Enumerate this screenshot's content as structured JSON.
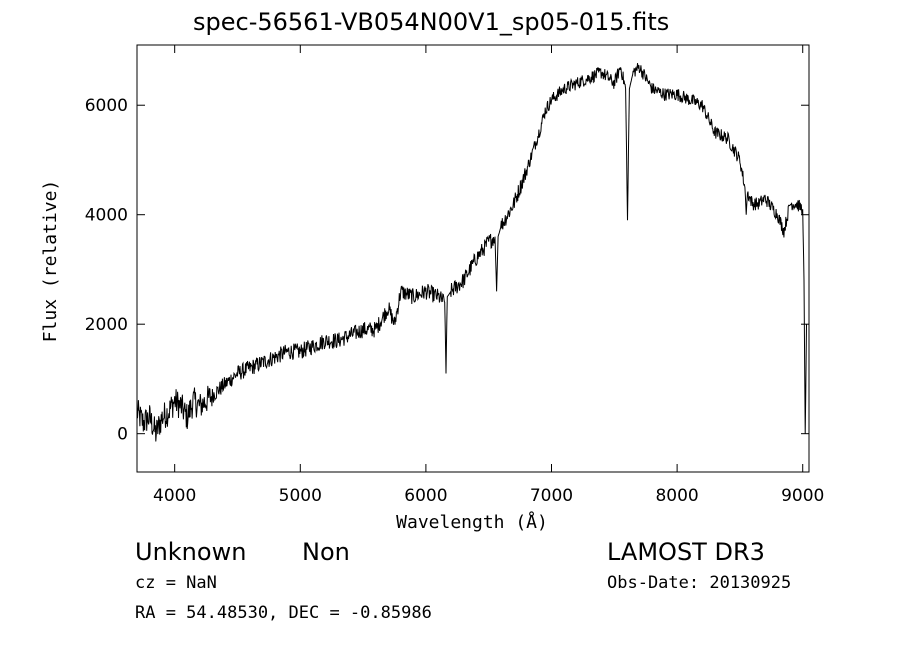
{
  "chart_data": {
    "type": "line",
    "title": "spec-56561-VB054N00V1_sp05-015.fits",
    "xlabel": "Wavelength (Å)",
    "ylabel": "Flux (relative)",
    "xlim": [
      3700,
      9050
    ],
    "ylim": [
      -700,
      7100
    ],
    "xticks": [
      4000,
      5000,
      6000,
      7000,
      8000,
      9000
    ],
    "yticks": [
      0,
      2000,
      4000,
      6000
    ],
    "grid": false,
    "series": [
      {
        "name": "flux",
        "x": [
          3700,
          3750,
          3800,
          3850,
          3900,
          3950,
          4000,
          4050,
          4100,
          4150,
          4200,
          4300,
          4400,
          4500,
          4600,
          4700,
          4800,
          4900,
          5000,
          5100,
          5200,
          5300,
          5400,
          5500,
          5600,
          5700,
          5750,
          5800,
          5900,
          6000,
          6100,
          6150,
          6160,
          6170,
          6200,
          6300,
          6400,
          6500,
          6550,
          6563,
          6575,
          6600,
          6700,
          6800,
          6900,
          6950,
          7000,
          7100,
          7200,
          7300,
          7400,
          7500,
          7550,
          7590,
          7605,
          7620,
          7650,
          7700,
          7800,
          7900,
          8000,
          8100,
          8200,
          8300,
          8400,
          8500,
          8540,
          8550,
          8560,
          8600,
          8650,
          8700,
          8800,
          8850,
          8900,
          8950,
          9000,
          9010,
          9020,
          9030
        ],
        "y": [
          400,
          200,
          300,
          0,
          300,
          400,
          600,
          500,
          300,
          600,
          500,
          700,
          900,
          1100,
          1200,
          1300,
          1400,
          1500,
          1500,
          1600,
          1700,
          1700,
          1800,
          1900,
          1900,
          2300,
          2000,
          2600,
          2500,
          2600,
          2500,
          2400,
          1100,
          2500,
          2600,
          2800,
          3200,
          3500,
          3600,
          2600,
          3600,
          3800,
          4200,
          4800,
          5500,
          5900,
          6100,
          6300,
          6400,
          6500,
          6600,
          6400,
          6700,
          6300,
          3900,
          6300,
          6600,
          6700,
          6300,
          6200,
          6200,
          6100,
          6000,
          5500,
          5400,
          5000,
          4500,
          4000,
          4400,
          4200,
          4200,
          4300,
          4000,
          3700,
          4200,
          4200,
          4100,
          2800,
          0,
          2000
        ]
      }
    ],
    "annotations": {
      "class": "Unknown",
      "subclass": "Non",
      "survey": "LAMOST DR3",
      "cz": "cz = NaN",
      "obs_date": "Obs-Date: 20130925",
      "coords": "RA =  54.48530, DEC =  -0.85986"
    }
  }
}
